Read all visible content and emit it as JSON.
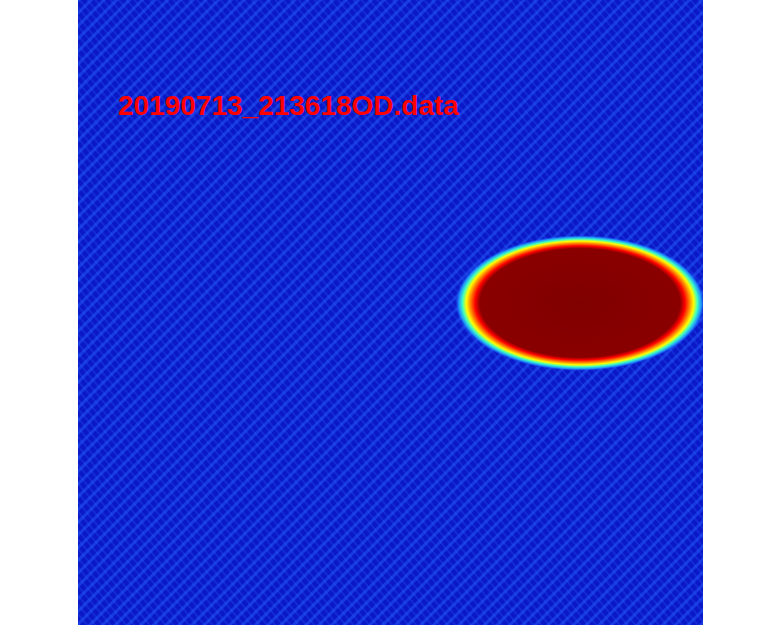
{
  "chart_data": {
    "type": "heatmap",
    "title": "20190713_213618OD.data",
    "xlim": [
      0,
      625
    ],
    "ylim": [
      625,
      0
    ],
    "tick_labels": false,
    "cloud": {
      "x": 502,
      "y": 303,
      "rx": 125,
      "ry": 68
    }
  }
}
